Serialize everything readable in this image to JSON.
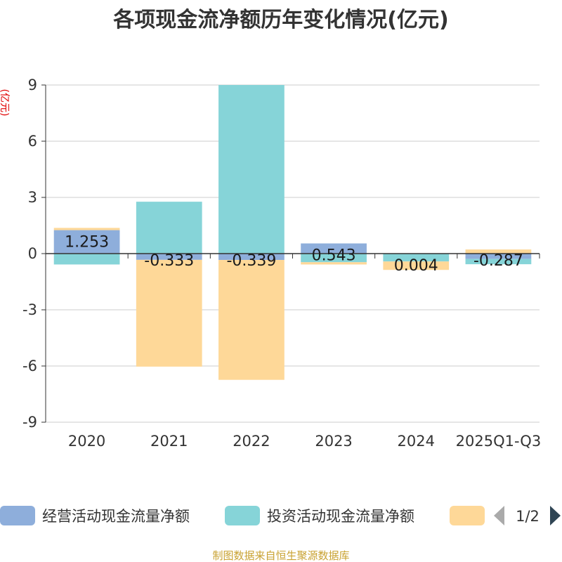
{
  "chart_data": {
    "type": "bar",
    "stacked": true,
    "title": "各项现金流净额历年变化情况(亿元)",
    "ylabel": "(亿元)",
    "ylim": [
      -9,
      9
    ],
    "yticks": [
      9,
      6,
      3,
      0,
      -3,
      -6,
      -9
    ],
    "categories": [
      "2020",
      "2021",
      "2022",
      "2023",
      "2024",
      "2025Q1-Q3"
    ],
    "series": [
      {
        "name": "经营活动现金流量净额",
        "color": "#8eaedb",
        "values": [
          1.253,
          -0.333,
          -0.339,
          0.543,
          0.004,
          -0.287
        ]
      },
      {
        "name": "投资活动现金流量净额",
        "color": "#86d4d8",
        "values": [
          -0.58,
          2.77,
          9.0,
          -0.46,
          -0.42,
          -0.28
        ]
      },
      {
        "name": "",
        "color": "#fed898",
        "values": [
          0.12,
          -5.7,
          -6.4,
          -0.12,
          -0.45,
          0.22
        ]
      }
    ],
    "data_labels": [
      "1.253",
      "-0.333",
      "-0.339",
      "0.543",
      "0.004",
      "-0.287"
    ],
    "legend": {
      "position": "bottom",
      "page": "1/2"
    },
    "source": "制图数据来自恒生聚源数据库"
  }
}
